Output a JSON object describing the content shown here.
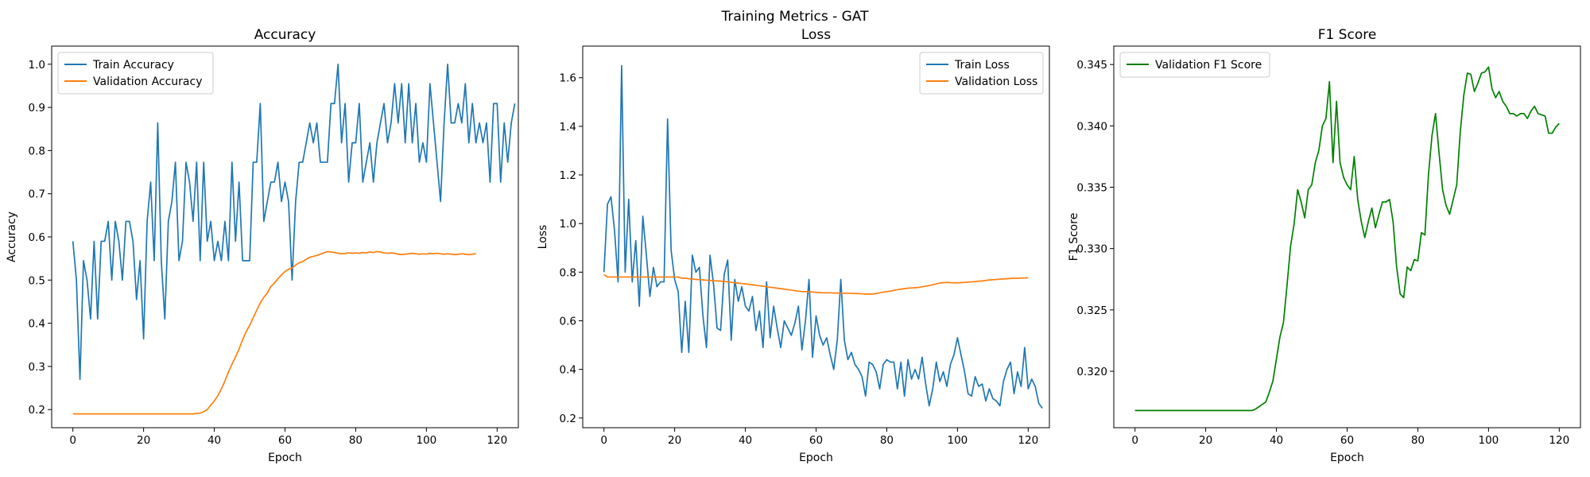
{
  "figure": {
    "suptitle": "Training Metrics - GAT"
  },
  "chart_data": [
    {
      "type": "line",
      "title": "Accuracy",
      "xlabel": "Epoch",
      "ylabel": "Accuracy",
      "xlim": [
        -6,
        126
      ],
      "ylim": [
        0.158,
        1.042
      ],
      "xticks": [
        0,
        20,
        40,
        60,
        80,
        100,
        120
      ],
      "yticks": [
        0.2,
        0.3,
        0.4,
        0.5,
        0.6,
        0.7,
        0.8,
        0.9,
        1.0
      ],
      "ytick_labels": [
        "0.2",
        "0.3",
        "0.4",
        "0.5",
        "0.6",
        "0.7",
        "0.8",
        "0.9",
        "1.0"
      ],
      "legend": "top-left",
      "series": [
        {
          "name": "Train Accuracy",
          "color": "#1f77b4",
          "values": [
            0.59,
            0.5,
            0.27,
            0.545,
            0.5,
            0.41,
            0.59,
            0.41,
            0.59,
            0.59,
            0.636,
            0.5,
            0.636,
            0.59,
            0.5,
            0.636,
            0.636,
            0.59,
            0.455,
            0.545,
            0.364,
            0.636,
            0.727,
            0.545,
            0.864,
            0.545,
            0.41,
            0.636,
            0.682,
            0.773,
            0.545,
            0.59,
            0.773,
            0.727,
            0.636,
            0.773,
            0.545,
            0.773,
            0.59,
            0.636,
            0.545,
            0.59,
            0.545,
            0.636,
            0.545,
            0.773,
            0.59,
            0.727,
            0.545,
            0.545,
            0.545,
            0.773,
            0.773,
            0.909,
            0.636,
            0.682,
            0.727,
            0.727,
            0.773,
            0.682,
            0.727,
            0.682,
            0.5,
            0.682,
            0.773,
            0.773,
            0.818,
            0.864,
            0.818,
            0.864,
            0.773,
            0.773,
            0.773,
            0.909,
            0.909,
            1.0,
            0.818,
            0.909,
            0.727,
            0.818,
            0.818,
            0.909,
            0.727,
            0.773,
            0.818,
            0.727,
            0.818,
            0.864,
            0.909,
            0.818,
            0.864,
            0.955,
            0.864,
            0.955,
            0.818,
            0.955,
            0.818,
            0.909,
            0.773,
            0.818,
            0.773,
            0.955,
            0.864,
            0.773,
            0.682,
            0.864,
            1.0,
            0.864,
            0.864,
            0.909,
            0.864,
            0.955,
            0.818,
            0.909,
            0.818,
            0.864,
            0.818,
            0.864,
            0.727,
            0.909,
            0.909,
            0.727,
            0.864,
            0.773,
            0.864,
            0.909
          ]
        },
        {
          "name": "Validation Accuracy",
          "color": "#ff7f0e",
          "values": [
            0.19,
            0.19,
            0.19,
            0.19,
            0.19,
            0.19,
            0.19,
            0.19,
            0.19,
            0.19,
            0.19,
            0.19,
            0.19,
            0.19,
            0.19,
            0.19,
            0.19,
            0.19,
            0.19,
            0.19,
            0.19,
            0.19,
            0.19,
            0.19,
            0.19,
            0.19,
            0.19,
            0.19,
            0.19,
            0.19,
            0.19,
            0.19,
            0.19,
            0.19,
            0.19,
            0.191,
            0.192,
            0.195,
            0.2,
            0.21,
            0.22,
            0.232,
            0.248,
            0.266,
            0.287,
            0.305,
            0.322,
            0.34,
            0.362,
            0.38,
            0.395,
            0.413,
            0.43,
            0.447,
            0.46,
            0.47,
            0.485,
            0.493,
            0.503,
            0.512,
            0.52,
            0.525,
            0.528,
            0.535,
            0.54,
            0.543,
            0.548,
            0.553,
            0.555,
            0.557,
            0.56,
            0.563,
            0.566,
            0.565,
            0.564,
            0.562,
            0.561,
            0.562,
            0.563,
            0.562,
            0.563,
            0.562,
            0.564,
            0.563,
            0.565,
            0.564,
            0.566,
            0.565,
            0.563,
            0.562,
            0.563,
            0.562,
            0.56,
            0.559,
            0.56,
            0.561,
            0.562,
            0.561,
            0.56,
            0.561,
            0.56,
            0.562,
            0.561,
            0.562,
            0.561,
            0.56,
            0.561,
            0.56,
            0.559,
            0.56,
            0.561,
            0.56,
            0.559,
            0.56,
            0.561
          ]
        }
      ]
    },
    {
      "type": "line",
      "title": "Loss",
      "xlabel": "Epoch",
      "ylabel": "Loss",
      "xlim": [
        -6,
        126
      ],
      "ylim": [
        0.16,
        1.73
      ],
      "xticks": [
        0,
        20,
        40,
        60,
        80,
        100,
        120
      ],
      "yticks": [
        0.2,
        0.4,
        0.6,
        0.8,
        1.0,
        1.2,
        1.4,
        1.6
      ],
      "ytick_labels": [
        "0.2",
        "0.4",
        "0.6",
        "0.8",
        "1.0",
        "1.2",
        "1.4",
        "1.6"
      ],
      "legend": "top-right",
      "series": [
        {
          "name": "Train Loss",
          "color": "#1f77b4",
          "values": [
            0.8,
            1.08,
            1.11,
            0.97,
            0.76,
            1.65,
            0.8,
            1.1,
            0.76,
            0.93,
            0.66,
            1.03,
            0.87,
            0.7,
            0.82,
            0.74,
            0.76,
            0.76,
            1.43,
            0.89,
            0.77,
            0.72,
            0.47,
            0.68,
            0.47,
            0.87,
            0.8,
            0.82,
            0.62,
            0.49,
            0.87,
            0.75,
            0.57,
            0.56,
            0.79,
            0.85,
            0.52,
            0.77,
            0.68,
            0.74,
            0.66,
            0.64,
            0.7,
            0.56,
            0.64,
            0.49,
            0.76,
            0.53,
            0.66,
            0.57,
            0.49,
            0.6,
            0.57,
            0.54,
            0.59,
            0.66,
            0.48,
            0.6,
            0.77,
            0.45,
            0.62,
            0.54,
            0.5,
            0.53,
            0.46,
            0.4,
            0.52,
            0.77,
            0.52,
            0.44,
            0.47,
            0.42,
            0.4,
            0.37,
            0.29,
            0.43,
            0.42,
            0.39,
            0.32,
            0.42,
            0.44,
            0.43,
            0.43,
            0.32,
            0.43,
            0.29,
            0.44,
            0.36,
            0.4,
            0.36,
            0.45,
            0.34,
            0.25,
            0.32,
            0.43,
            0.35,
            0.39,
            0.33,
            0.42,
            0.46,
            0.53,
            0.46,
            0.39,
            0.3,
            0.29,
            0.37,
            0.33,
            0.34,
            0.27,
            0.32,
            0.28,
            0.27,
            0.25,
            0.35,
            0.4,
            0.43,
            0.3,
            0.39,
            0.33,
            0.49,
            0.32,
            0.36,
            0.33,
            0.26,
            0.24
          ]
        },
        {
          "name": "Validation Loss",
          "color": "#ff7f0e",
          "values": [
            0.79,
            0.78,
            0.78,
            0.78,
            0.78,
            0.78,
            0.78,
            0.78,
            0.78,
            0.78,
            0.78,
            0.78,
            0.78,
            0.78,
            0.78,
            0.78,
            0.78,
            0.78,
            0.78,
            0.78,
            0.78,
            0.78,
            0.775,
            0.775,
            0.773,
            0.772,
            0.77,
            0.769,
            0.768,
            0.767,
            0.766,
            0.765,
            0.764,
            0.763,
            0.762,
            0.76,
            0.758,
            0.756,
            0.755,
            0.753,
            0.752,
            0.75,
            0.748,
            0.746,
            0.744,
            0.742,
            0.74,
            0.738,
            0.736,
            0.734,
            0.732,
            0.73,
            0.728,
            0.726,
            0.724,
            0.722,
            0.72,
            0.72,
            0.72,
            0.718,
            0.717,
            0.716,
            0.715,
            0.715,
            0.715,
            0.714,
            0.714,
            0.714,
            0.713,
            0.713,
            0.713,
            0.712,
            0.712,
            0.711,
            0.71,
            0.71,
            0.71,
            0.712,
            0.715,
            0.718,
            0.72,
            0.722,
            0.725,
            0.728,
            0.73,
            0.732,
            0.734,
            0.735,
            0.736,
            0.737,
            0.74,
            0.742,
            0.745,
            0.748,
            0.752,
            0.755,
            0.757,
            0.758,
            0.757,
            0.756,
            0.756,
            0.757,
            0.758,
            0.759,
            0.76,
            0.761,
            0.763,
            0.764,
            0.766,
            0.768,
            0.769,
            0.77,
            0.771,
            0.772,
            0.773,
            0.774,
            0.775,
            0.775,
            0.776,
            0.776,
            0.777
          ]
        }
      ]
    },
    {
      "type": "line",
      "title": "F1 Score",
      "xlabel": "Epoch",
      "ylabel": "F1 Score",
      "xlim": [
        -6,
        126
      ],
      "ylim": [
        0.3154,
        0.3465
      ],
      "xticks": [
        0,
        20,
        40,
        60,
        80,
        100,
        120
      ],
      "yticks": [
        0.32,
        0.325,
        0.33,
        0.335,
        0.34,
        0.345
      ],
      "ytick_labels": [
        "0.320",
        "0.325",
        "0.330",
        "0.335",
        "0.340",
        "0.345"
      ],
      "legend": "top-left",
      "series": [
        {
          "name": "Validation F1 Score",
          "color": "#008000",
          "values": [
            0.3168,
            0.3168,
            0.3168,
            0.3168,
            0.3168,
            0.3168,
            0.3168,
            0.3168,
            0.3168,
            0.3168,
            0.3168,
            0.3168,
            0.3168,
            0.3168,
            0.3168,
            0.3168,
            0.3168,
            0.3168,
            0.3168,
            0.3168,
            0.3168,
            0.3168,
            0.3168,
            0.3168,
            0.3168,
            0.3168,
            0.3168,
            0.3168,
            0.3168,
            0.3168,
            0.3168,
            0.3168,
            0.3168,
            0.3168,
            0.3169,
            0.3171,
            0.3173,
            0.3175,
            0.3183,
            0.3192,
            0.321,
            0.3228,
            0.324,
            0.327,
            0.3302,
            0.332,
            0.3348,
            0.3338,
            0.3325,
            0.3348,
            0.3352,
            0.337,
            0.338,
            0.34,
            0.3406,
            0.3436,
            0.337,
            0.342,
            0.337,
            0.3358,
            0.3352,
            0.3348,
            0.3375,
            0.334,
            0.3322,
            0.3309,
            0.3322,
            0.3333,
            0.3317,
            0.3328,
            0.3338,
            0.3338,
            0.334,
            0.3322,
            0.3285,
            0.3263,
            0.326,
            0.3285,
            0.3282,
            0.3291,
            0.329,
            0.3313,
            0.3311,
            0.336,
            0.3392,
            0.341,
            0.3378,
            0.3348,
            0.3335,
            0.3328,
            0.334,
            0.3352,
            0.3395,
            0.3425,
            0.3443,
            0.3442,
            0.3428,
            0.3435,
            0.3443,
            0.3444,
            0.3448,
            0.343,
            0.3423,
            0.3428,
            0.342,
            0.3416,
            0.341,
            0.341,
            0.3408,
            0.341,
            0.341,
            0.3406,
            0.3412,
            0.3416,
            0.341,
            0.3409,
            0.3408,
            0.3394,
            0.3394,
            0.3399,
            0.3402
          ]
        }
      ]
    }
  ]
}
